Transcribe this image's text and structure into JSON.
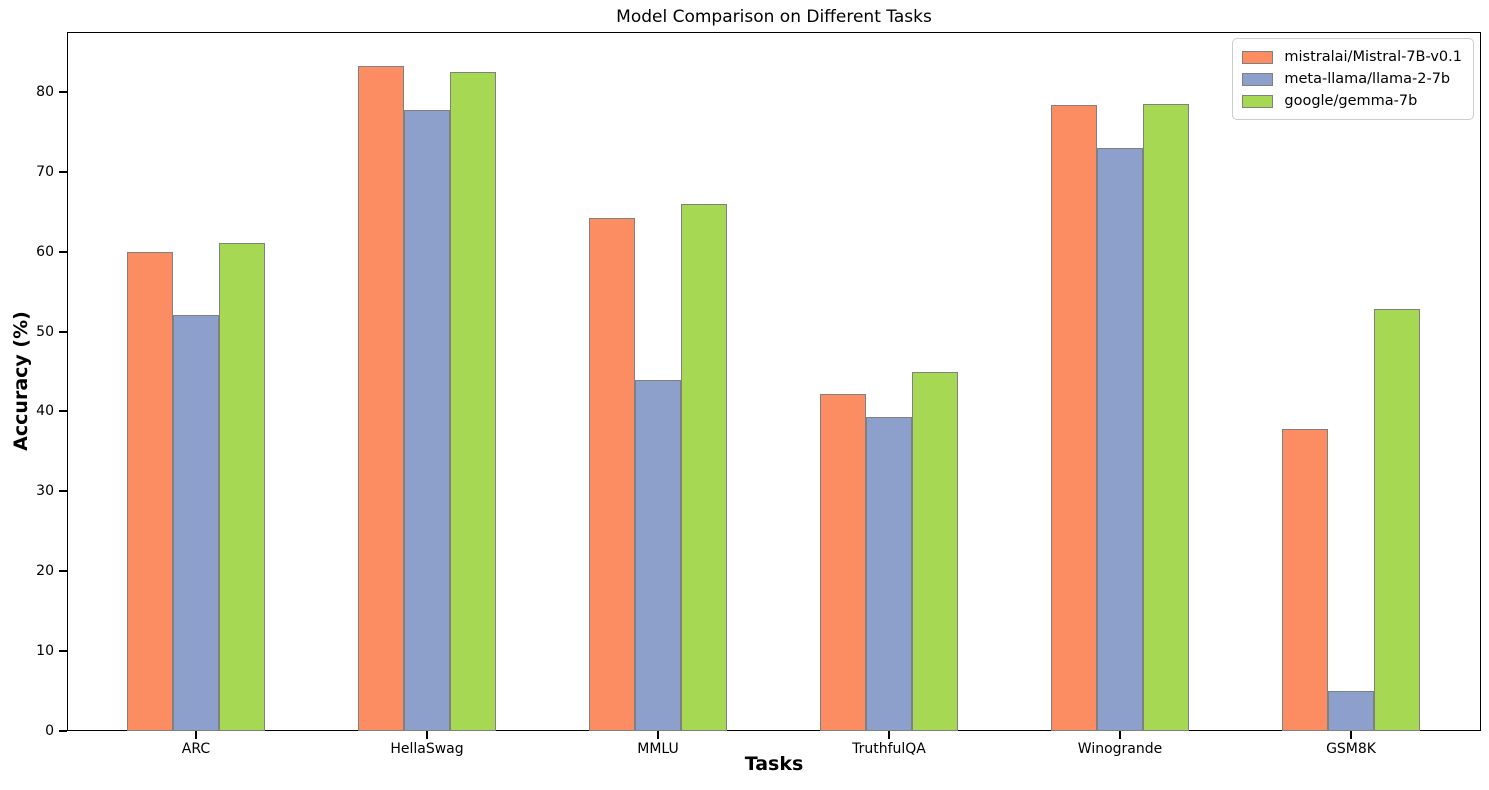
{
  "title": "Model Comparison on Different Tasks",
  "chart_data": {
    "type": "bar",
    "title": "Model Comparison on Different Tasks",
    "xlabel": "Tasks",
    "ylabel": "Accuracy (%)",
    "categories": [
      "ARC",
      "HellaSwag",
      "MMLU",
      "TruthfulQA",
      "Winogrande",
      "GSM8K"
    ],
    "series": [
      {
        "name": "mistralai/Mistral-7B-v0.1",
        "color": "#FC8D62",
        "values": [
          60.0,
          83.3,
          64.2,
          42.2,
          78.4,
          37.8
        ]
      },
      {
        "name": "meta-llama/llama-2-7b",
        "color": "#8DA0CB",
        "values": [
          52.1,
          77.7,
          43.9,
          39.3,
          73.0,
          5.0
        ]
      },
      {
        "name": "google/gemma-7b",
        "color": "#A6D854",
        "values": [
          61.1,
          82.5,
          66.0,
          44.9,
          78.5,
          52.8
        ]
      }
    ],
    "ylim": [
      0,
      87.5
    ],
    "yticks": [
      0,
      10,
      20,
      30,
      40,
      50,
      60,
      70,
      80
    ],
    "grid": false,
    "legend_position": "upper right",
    "bar_edge_color": "#808080",
    "spine_color": "#000000",
    "background_color": "#ffffff"
  }
}
